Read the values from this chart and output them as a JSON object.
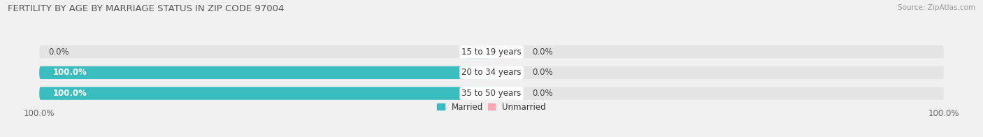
{
  "title": "FERTILITY BY AGE BY MARRIAGE STATUS IN ZIP CODE 97004",
  "source": "Source: ZipAtlas.com",
  "categories": [
    "15 to 19 years",
    "20 to 34 years",
    "35 to 50 years"
  ],
  "married": [
    0.0,
    100.0,
    100.0
  ],
  "unmarried": [
    0.0,
    0.0,
    0.0
  ],
  "married_color": "#3bbcbe",
  "unmarried_color": "#f8a8b8",
  "bar_bg_color": "#e4e4e4",
  "bar_height": 0.62,
  "xlim": 100.0,
  "small_bar_width": 6.0,
  "title_fontsize": 9.5,
  "label_fontsize": 8.5,
  "tick_fontsize": 8.5,
  "legend_labels": [
    "Married",
    "Unmarried"
  ],
  "bg_color": "#f0f0f0",
  "title_color": "#555555",
  "source_color": "#999999",
  "axis_label_color": "#666666",
  "value_label_color": "#444444",
  "center_label_bg": "#ffffff"
}
